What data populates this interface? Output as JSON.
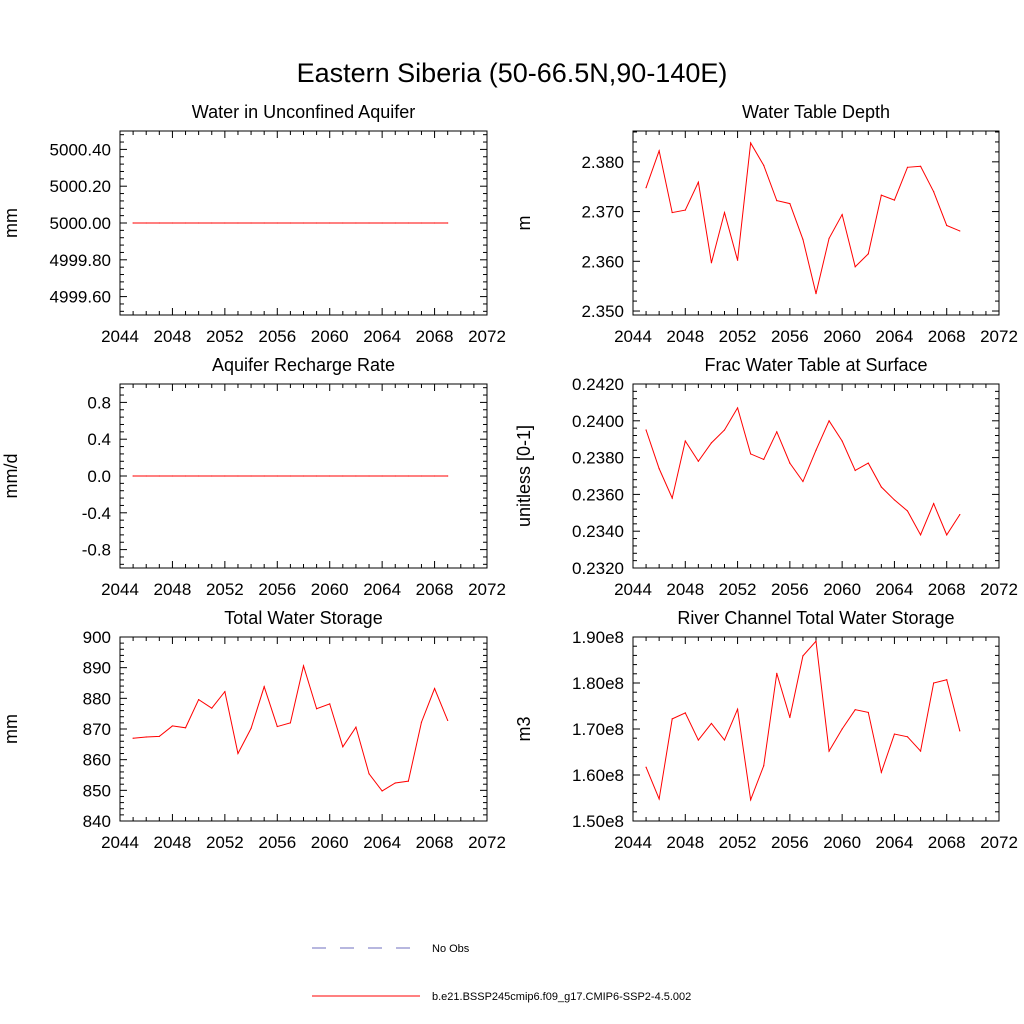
{
  "figure_title": "Eastern Siberia (50-66.5N,90-140E)",
  "chart_data": [
    {
      "type": "line",
      "title": "Water in Unconfined Aquifer",
      "ylabel": "mm",
      "xlim": [
        2044,
        2072
      ],
      "ylim": [
        4999.5,
        5000.5
      ],
      "x_ticks": [
        2044,
        2048,
        2052,
        2056,
        2060,
        2064,
        2068,
        2072
      ],
      "y_ticks": [
        4999.6,
        4999.8,
        5000.0,
        5000.2,
        5000.4
      ],
      "y_tick_decimals": 2,
      "x": [
        2045,
        2046,
        2047,
        2048,
        2049,
        2050,
        2051,
        2052,
        2053,
        2054,
        2055,
        2056,
        2057,
        2058,
        2059,
        2060,
        2061,
        2062,
        2063,
        2064,
        2065,
        2066,
        2067,
        2068,
        2069
      ],
      "series": [
        {
          "values": [
            5000.0,
            5000.0,
            5000.0,
            5000.0,
            5000.0,
            5000.0,
            5000.0,
            5000.0,
            5000.0,
            5000.0,
            5000.0,
            5000.0,
            5000.0,
            5000.0,
            5000.0,
            5000.0,
            5000.0,
            5000.0,
            5000.0,
            5000.0,
            5000.0,
            5000.0,
            5000.0,
            5000.0,
            5000.0
          ]
        }
      ]
    },
    {
      "type": "line",
      "title": "Water Table Depth",
      "ylabel": "m",
      "xlim": [
        2044,
        2072
      ],
      "ylim": [
        2.3492,
        2.3862
      ],
      "x_ticks": [
        2044,
        2048,
        2052,
        2056,
        2060,
        2064,
        2068,
        2072
      ],
      "y_ticks": [
        2.35,
        2.36,
        2.37,
        2.38
      ],
      "y_tick_decimals": 3,
      "x": [
        2045,
        2046,
        2047,
        2048,
        2049,
        2050,
        2051,
        2052,
        2053,
        2054,
        2055,
        2056,
        2057,
        2058,
        2059,
        2060,
        2061,
        2062,
        2063,
        2064,
        2065,
        2066,
        2067,
        2068,
        2069
      ],
      "series": [
        {
          "values": [
            2.3748,
            2.3822,
            2.3698,
            2.3703,
            2.3759,
            2.3597,
            2.3698,
            2.3602,
            2.3838,
            2.3793,
            2.3722,
            2.3716,
            2.3644,
            2.3535,
            2.3646,
            2.3694,
            2.3589,
            2.3615,
            2.3733,
            2.3723,
            2.3789,
            2.3791,
            2.374,
            2.3672,
            2.3661
          ]
        }
      ]
    },
    {
      "type": "line",
      "title": "Aquifer Recharge Rate",
      "ylabel": "mm/d",
      "xlim": [
        2044,
        2072
      ],
      "ylim": [
        -1.0,
        1.0
      ],
      "x_ticks": [
        2044,
        2048,
        2052,
        2056,
        2060,
        2064,
        2068,
        2072
      ],
      "y_ticks": [
        -0.8,
        -0.4,
        0.0,
        0.4,
        0.8
      ],
      "y_tick_decimals": 1,
      "x": [
        2045,
        2046,
        2047,
        2048,
        2049,
        2050,
        2051,
        2052,
        2053,
        2054,
        2055,
        2056,
        2057,
        2058,
        2059,
        2060,
        2061,
        2062,
        2063,
        2064,
        2065,
        2066,
        2067,
        2068,
        2069
      ],
      "series": [
        {
          "values": [
            0.0,
            0.0,
            0.0,
            0.0,
            0.0,
            0.0,
            0.0,
            0.0,
            0.0,
            0.0,
            0.0,
            0.0,
            0.0,
            0.0,
            0.0,
            0.0,
            0.0,
            0.0,
            0.0,
            0.0,
            0.0,
            0.0,
            0.0,
            0.0,
            0.0
          ]
        }
      ]
    },
    {
      "type": "line",
      "title": "Frac Water Table at Surface",
      "ylabel": "unitless [0-1]",
      "xlim": [
        2044,
        2072
      ],
      "ylim": [
        0.232,
        0.242
      ],
      "x_ticks": [
        2044,
        2048,
        2052,
        2056,
        2060,
        2064,
        2068,
        2072
      ],
      "y_ticks": [
        0.232,
        0.234,
        0.236,
        0.238,
        0.24,
        0.242
      ],
      "y_tick_decimals": 4,
      "x": [
        2045,
        2046,
        2047,
        2048,
        2049,
        2050,
        2051,
        2052,
        2053,
        2054,
        2055,
        2056,
        2057,
        2058,
        2059,
        2060,
        2061,
        2062,
        2063,
        2064,
        2065,
        2066,
        2067,
        2068,
        2069
      ],
      "series": [
        {
          "values": [
            0.2395,
            0.2374,
            0.2358,
            0.2389,
            0.2378,
            0.2388,
            0.2395,
            0.2407,
            0.2382,
            0.2379,
            0.2394,
            0.2377,
            0.2367,
            0.2384,
            0.24,
            0.2389,
            0.2373,
            0.2377,
            0.2364,
            0.2357,
            0.2351,
            0.2338,
            0.2355,
            0.2338,
            0.2349
          ]
        }
      ]
    },
    {
      "type": "line",
      "title": "Total Water Storage",
      "ylabel": "mm",
      "xlim": [
        2044,
        2072
      ],
      "ylim": [
        840,
        900
      ],
      "x_ticks": [
        2044,
        2048,
        2052,
        2056,
        2060,
        2064,
        2068,
        2072
      ],
      "y_ticks": [
        840,
        850,
        860,
        870,
        880,
        890,
        900
      ],
      "y_tick_decimals": 0,
      "x": [
        2045,
        2046,
        2047,
        2048,
        2049,
        2050,
        2051,
        2052,
        2053,
        2054,
        2055,
        2056,
        2057,
        2058,
        2059,
        2060,
        2061,
        2062,
        2063,
        2064,
        2065,
        2066,
        2067,
        2068,
        2069
      ],
      "series": [
        {
          "values": [
            867.0,
            867.4,
            867.6,
            871.0,
            870.4,
            879.6,
            876.8,
            882.2,
            862.0,
            870.2,
            883.8,
            870.8,
            872.0,
            890.6,
            876.6,
            878.2,
            864.2,
            870.6,
            855.4,
            849.8,
            852.4,
            853.0,
            872.2,
            883.2,
            872.8
          ]
        }
      ]
    },
    {
      "type": "line",
      "title": "River Channel Total Water Storage",
      "ylabel": "m3",
      "xlim": [
        2044,
        2072
      ],
      "ylim": [
        150000000,
        190000000
      ],
      "x_ticks": [
        2044,
        2048,
        2052,
        2056,
        2060,
        2064,
        2068,
        2072
      ],
      "y_ticks": [
        150000000,
        160000000,
        170000000,
        180000000,
        190000000
      ],
      "y_tick_labels": [
        "1.50e8",
        "1.60e8",
        "1.70e8",
        "1.80e8",
        "1.90e8"
      ],
      "x": [
        2045,
        2046,
        2047,
        2048,
        2049,
        2050,
        2051,
        2052,
        2053,
        2054,
        2055,
        2056,
        2057,
        2058,
        2059,
        2060,
        2061,
        2062,
        2063,
        2064,
        2065,
        2066,
        2067,
        2068,
        2069
      ],
      "series": [
        {
          "values": [
            161700000,
            154800000,
            172200000,
            173500000,
            167600000,
            171200000,
            167600000,
            174300000,
            154600000,
            162000000,
            182100000,
            172500000,
            185900000,
            189100000,
            165200000,
            170000000,
            174200000,
            173600000,
            160600000,
            168900000,
            168300000,
            165200000,
            180000000,
            180700000,
            169600000
          ]
        }
      ]
    }
  ],
  "legend": [
    {
      "label": "No Obs",
      "color": "#6f6fbf",
      "style": "dashed"
    },
    {
      "label": "b.e21.BSSP245cmip6.f09_g17.CMIP6-SSP2-4.5.002",
      "color": "#ff0000",
      "style": "solid"
    }
  ],
  "series_color": "#ff0000"
}
